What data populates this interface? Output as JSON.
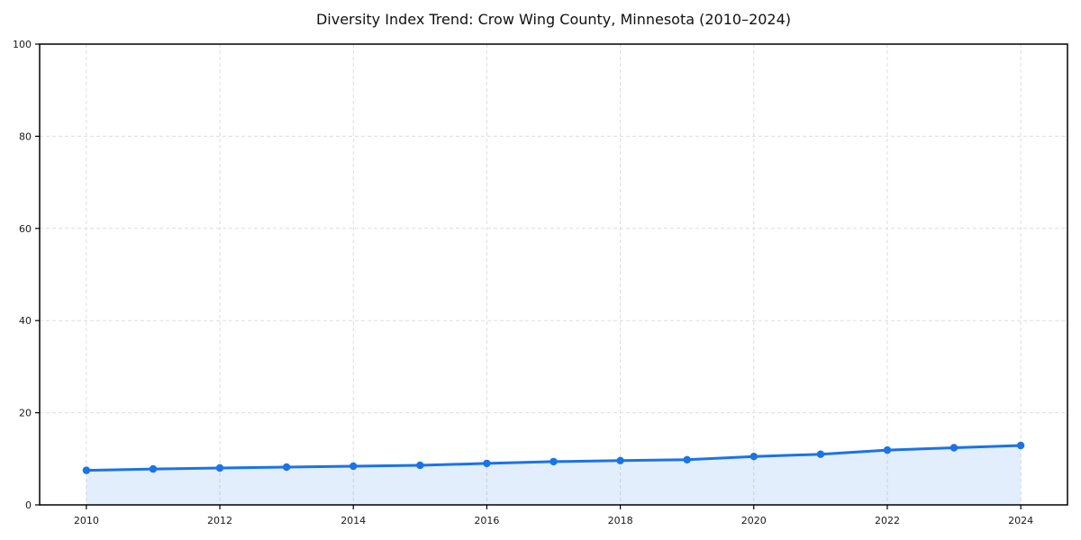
{
  "chart_data": {
    "type": "line",
    "title": "Diversity Index Trend: Crow Wing County, Minnesota (2010–2024)",
    "x": [
      2010,
      2011,
      2012,
      2013,
      2014,
      2015,
      2016,
      2017,
      2018,
      2019,
      2020,
      2021,
      2022,
      2023,
      2024
    ],
    "series": [
      {
        "name": "Diversity Index",
        "values": [
          7.5,
          7.8,
          8.0,
          8.2,
          8.4,
          8.6,
          9.0,
          9.4,
          9.6,
          9.8,
          10.5,
          11.0,
          11.9,
          12.4,
          12.9
        ]
      }
    ],
    "xlabel": "",
    "ylabel": "",
    "ylim": [
      0,
      100
    ],
    "xlim": [
      2009.3,
      2024.7
    ],
    "yticks": [
      0,
      20,
      40,
      60,
      80,
      100
    ],
    "xticks": [
      2010,
      2012,
      2014,
      2016,
      2018,
      2020,
      2022,
      2024
    ],
    "grid": true,
    "grid_style": "dashed",
    "legend": "none",
    "line_color": "#1a73e8",
    "fill_color": "rgba(26,115,232,0.12)",
    "marker": "circle",
    "marker_radius": 4.2,
    "plot_border_color": "#000000",
    "background_color": "#ffffff"
  }
}
